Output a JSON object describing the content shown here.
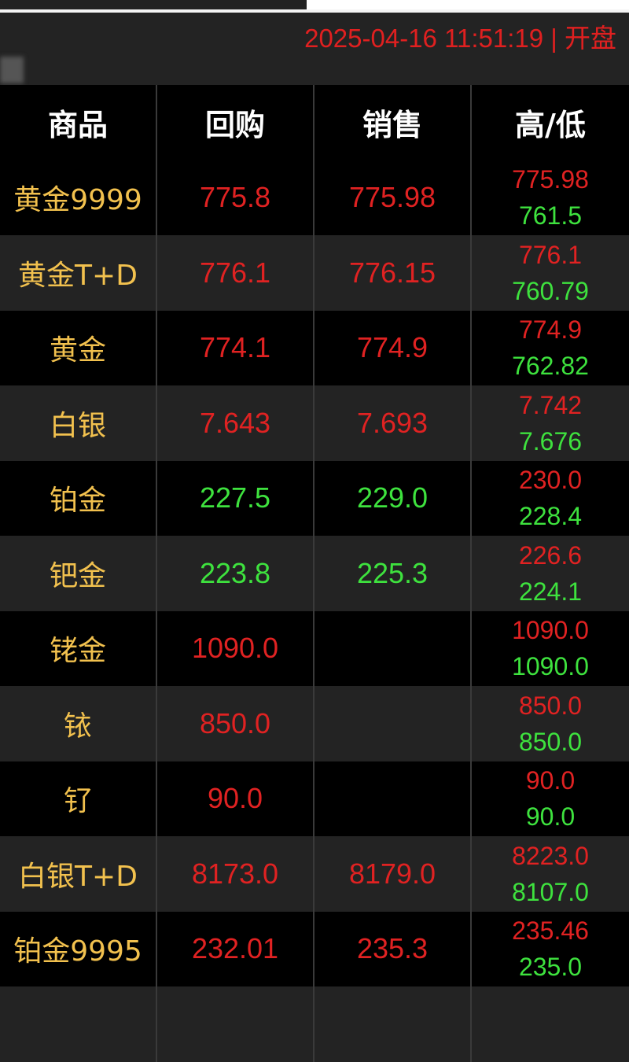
{
  "status_bar": {
    "datetime": "2025-04-16 11:51:19",
    "separator": "|",
    "market_state": "开盘"
  },
  "colors": {
    "up": "#e02222",
    "down": "#3ee23e",
    "name": "#f2c14e",
    "header": "#ffffff"
  },
  "table": {
    "headers": [
      "商品",
      "回购",
      "销售",
      "高/低"
    ],
    "rows": [
      {
        "name": "黄金9999",
        "buy": "775.8",
        "buy_color": "red",
        "sell": "775.98",
        "sell_color": "red",
        "high": "775.98",
        "low": "761.5"
      },
      {
        "name": "黄金T+D",
        "buy": "776.1",
        "buy_color": "red",
        "sell": "776.15",
        "sell_color": "red",
        "high": "776.1",
        "low": "760.79"
      },
      {
        "name": "黄金",
        "buy": "774.1",
        "buy_color": "red",
        "sell": "774.9",
        "sell_color": "red",
        "high": "774.9",
        "low": "762.82"
      },
      {
        "name": "白银",
        "buy": "7.643",
        "buy_color": "red",
        "sell": "7.693",
        "sell_color": "red",
        "high": "7.742",
        "low": "7.676"
      },
      {
        "name": "铂金",
        "buy": "227.5",
        "buy_color": "green",
        "sell": "229.0",
        "sell_color": "green",
        "high": "230.0",
        "low": "228.4"
      },
      {
        "name": "钯金",
        "buy": "223.8",
        "buy_color": "green",
        "sell": "225.3",
        "sell_color": "green",
        "high": "226.6",
        "low": "224.1"
      },
      {
        "name": "铑金",
        "buy": "1090.0",
        "buy_color": "red",
        "sell": "",
        "sell_color": "red",
        "high": "1090.0",
        "low": "1090.0"
      },
      {
        "name": "铱",
        "buy": "850.0",
        "buy_color": "red",
        "sell": "",
        "sell_color": "red",
        "high": "850.0",
        "low": "850.0"
      },
      {
        "name": "钌",
        "buy": "90.0",
        "buy_color": "red",
        "sell": "",
        "sell_color": "red",
        "high": "90.0",
        "low": "90.0"
      },
      {
        "name": "白银T+D",
        "buy": "8173.0",
        "buy_color": "red",
        "sell": "8179.0",
        "sell_color": "red",
        "high": "8223.0",
        "low": "8107.0"
      },
      {
        "name": "铂金9995",
        "buy": "232.01",
        "buy_color": "red",
        "sell": "235.3",
        "sell_color": "red",
        "high": "235.46",
        "low": "235.0"
      }
    ]
  }
}
